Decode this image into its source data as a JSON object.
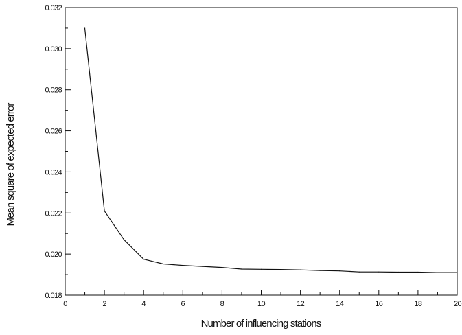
{
  "chart_data": {
    "type": "line",
    "title": "",
    "xlabel": "Number of influencing stations",
    "ylabel": "Mean square of expected error",
    "xlim": [
      0,
      20
    ],
    "ylim": [
      0.018,
      0.032
    ],
    "x_ticks": [
      0,
      2,
      4,
      6,
      8,
      10,
      12,
      14,
      16,
      18,
      20
    ],
    "y_ticks": [
      0.018,
      0.02,
      0.022,
      0.024,
      0.026,
      0.028,
      0.03,
      0.032
    ],
    "x_tick_labels": [
      "0",
      "2",
      "4",
      "6",
      "8",
      "10",
      "12",
      "14",
      "16",
      "18",
      "20"
    ],
    "y_tick_labels": [
      "0.018",
      "0.020",
      "0.022",
      "0.024",
      "0.026",
      "0.028",
      "0.030",
      "0.032"
    ],
    "grid": false,
    "series": [
      {
        "x": [
          1,
          2,
          3,
          4,
          5,
          6,
          7,
          8,
          9,
          10,
          11,
          12,
          13,
          14,
          15,
          16,
          17,
          18,
          19,
          20
        ],
        "values": [
          0.031,
          0.0221,
          0.0207,
          0.01975,
          0.01952,
          0.01945,
          0.0194,
          0.01935,
          0.01927,
          0.01926,
          0.01925,
          0.01923,
          0.0192,
          0.01918,
          0.01913,
          0.01913,
          0.01912,
          0.01912,
          0.0191,
          0.0191
        ],
        "color": "#111111"
      }
    ]
  }
}
